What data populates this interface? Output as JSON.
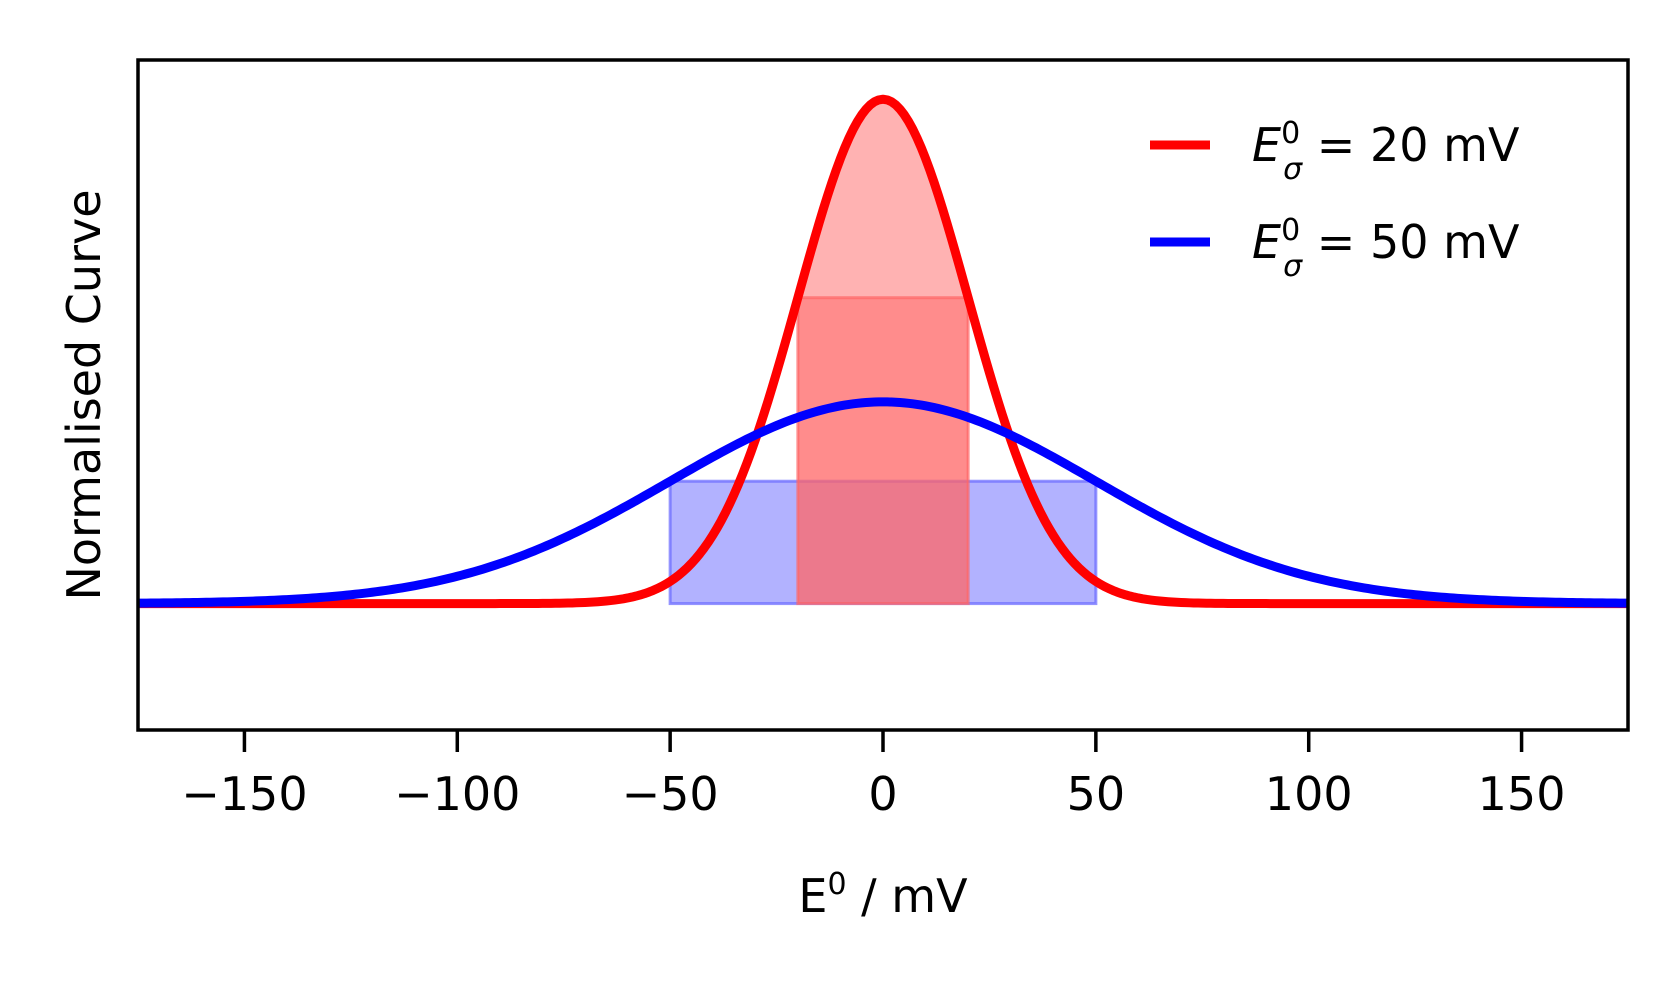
{
  "chart_data": {
    "type": "line",
    "xlabel": "E",
    "xlabel_sup": "0",
    "xlabel_unit": " / mV",
    "ylabel": "Normalised Curve",
    "xlim": [
      -175,
      175
    ],
    "ylim": [
      -0.005,
      0.0215
    ],
    "xticks": [
      -150,
      -100,
      -50,
      0,
      50,
      100,
      150
    ],
    "yticks_visible": false,
    "grid": false,
    "legend": "top-right",
    "series": [
      {
        "sigma": 20,
        "mean": 0,
        "color": "#ff0000",
        "fill_color": "#ff6666",
        "fill_range": [
          -20,
          20
        ],
        "legend_sym": "E",
        "legend_sup": "0",
        "legend_sub": "σ",
        "legend_value": " = 20 mV"
      },
      {
        "sigma": 50,
        "mean": 0,
        "color": "#0000ff",
        "fill_color": "#6666ff",
        "fill_range": [
          -50,
          50
        ],
        "legend_sym": "E",
        "legend_sup": "0",
        "legend_sub": "σ",
        "legend_value": " = 50 mV"
      }
    ]
  }
}
